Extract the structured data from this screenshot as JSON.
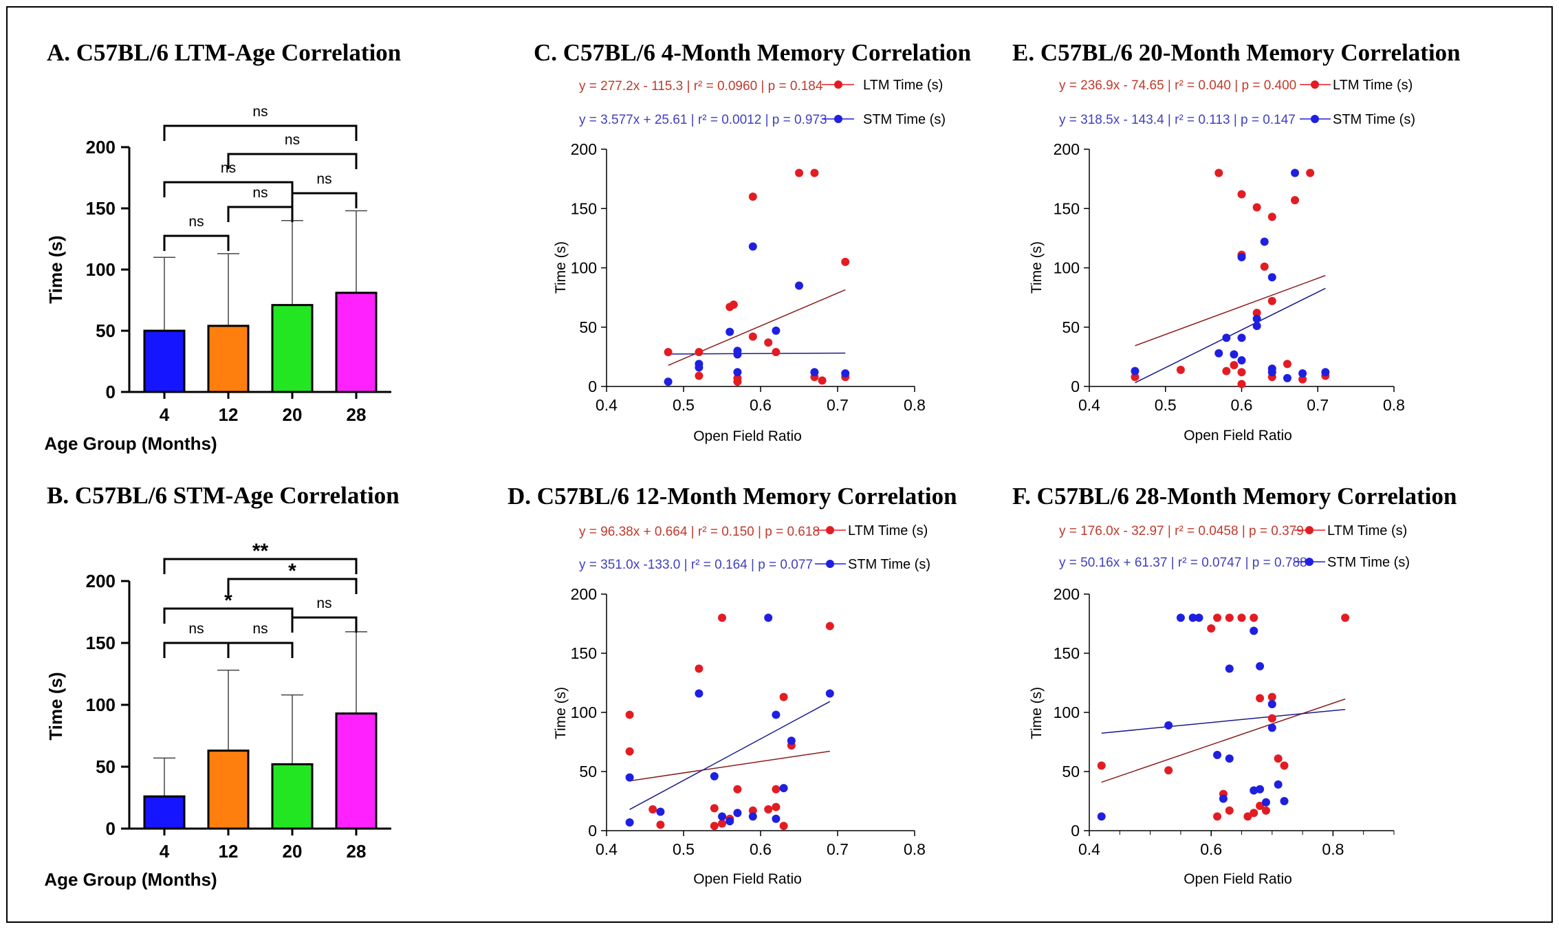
{
  "colors": {
    "ltm": "#e31c23",
    "stm": "#1f1fe0",
    "ltm_fit": "#8b1a1a",
    "stm_fit": "#1a1a8b"
  },
  "chart_data": [
    {
      "type": "bar",
      "title": "A. C57BL/6 LTM-Age Correlation",
      "xlabel": "Age Group (Months)",
      "ylabel": "Time (s)",
      "ylim": [
        0,
        200
      ],
      "yticks": [
        "0",
        "50",
        "100",
        "150",
        "200"
      ],
      "categories": [
        "4",
        "12",
        "20",
        "28"
      ],
      "bar_colors": [
        "#1515ff",
        "#ff7f0e",
        "#22e622",
        "#ff22ff"
      ],
      "values": [
        50,
        54,
        71,
        81
      ],
      "error": [
        60,
        59,
        69,
        67
      ],
      "comparisons": [
        {
          "a": 0,
          "b": 1,
          "label": "ns"
        },
        {
          "a": 1,
          "b": 2,
          "label": "ns"
        },
        {
          "a": 2,
          "b": 3,
          "label": "ns"
        },
        {
          "a": 0,
          "b": 2,
          "label": "ns"
        },
        {
          "a": 1,
          "b": 3,
          "label": "ns"
        },
        {
          "a": 0,
          "b": 3,
          "label": "ns"
        }
      ]
    },
    {
      "type": "bar",
      "title": "B. C57BL/6 STM-Age Correlation",
      "xlabel": "Age Group (Months)",
      "ylabel": "Time (s)",
      "ylim": [
        0,
        200
      ],
      "yticks": [
        "0",
        "50",
        "100",
        "150",
        "200"
      ],
      "categories": [
        "4",
        "12",
        "20",
        "28"
      ],
      "bar_colors": [
        "#1515ff",
        "#ff7f0e",
        "#22e622",
        "#ff22ff"
      ],
      "values": [
        26,
        63,
        52,
        93
      ],
      "error": [
        31,
        65,
        56,
        66
      ],
      "comparisons": [
        {
          "a": 0,
          "b": 1,
          "label": "ns"
        },
        {
          "a": 1,
          "b": 2,
          "label": "ns"
        },
        {
          "a": 2,
          "b": 3,
          "label": "ns"
        },
        {
          "a": 0,
          "b": 2,
          "label": "*"
        },
        {
          "a": 1,
          "b": 3,
          "label": "*"
        },
        {
          "a": 0,
          "b": 3,
          "label": "**"
        }
      ]
    },
    {
      "type": "scatter",
      "title": "C. C57BL/6 4-Month Memory Correlation",
      "xlabel": "Open Field Ratio",
      "ylabel": "Time (s)",
      "xlim": [
        0.4,
        0.8
      ],
      "ylim": [
        0,
        200
      ],
      "xticks": [
        "0.4",
        "0.5",
        "0.6",
        "0.7",
        "0.8"
      ],
      "yticks": [
        "0",
        "50",
        "100",
        "150",
        "200"
      ],
      "series": [
        {
          "name": "LTM Time (s)",
          "equation": "y = 277.2x - 115.3 | r² = 0.0960 | p = 0.184",
          "fit": {
            "slope": 277.2,
            "intercept": -115.3,
            "x0": 0.48,
            "x1": 0.71
          },
          "points": [
            [
              0.48,
              29
            ],
            [
              0.52,
              29
            ],
            [
              0.52,
              9
            ],
            [
              0.56,
              67
            ],
            [
              0.565,
              69
            ],
            [
              0.57,
              7
            ],
            [
              0.57,
              4
            ],
            [
              0.59,
              160
            ],
            [
              0.59,
              42
            ],
            [
              0.61,
              37
            ],
            [
              0.62,
              29
            ],
            [
              0.65,
              180
            ],
            [
              0.67,
              180
            ],
            [
              0.67,
              8
            ],
            [
              0.68,
              5
            ],
            [
              0.71,
              105
            ],
            [
              0.71,
              8
            ]
          ]
        },
        {
          "name": "STM Time (s)",
          "equation": "y = 3.577x + 25.61 | r² = 0.0012 | p = 0.973",
          "fit": {
            "slope": 3.577,
            "intercept": 25.61,
            "x0": 0.48,
            "x1": 0.71
          },
          "points": [
            [
              0.48,
              4
            ],
            [
              0.52,
              19
            ],
            [
              0.52,
              16
            ],
            [
              0.56,
              46
            ],
            [
              0.57,
              30
            ],
            [
              0.57,
              27
            ],
            [
              0.57,
              12
            ],
            [
              0.59,
              118
            ],
            [
              0.62,
              47
            ],
            [
              0.65,
              85
            ],
            [
              0.67,
              12
            ],
            [
              0.71,
              11
            ]
          ]
        }
      ]
    },
    {
      "type": "scatter",
      "title": "D. C57BL/6 12-Month Memory Correlation",
      "xlabel": "Open Field Ratio",
      "ylabel": "Time (s)",
      "xlim": [
        0.4,
        0.8
      ],
      "ylim": [
        0,
        200
      ],
      "xticks": [
        "0.4",
        "0.5",
        "0.6",
        "0.7",
        "0.8"
      ],
      "yticks": [
        "0",
        "50",
        "100",
        "150",
        "200"
      ],
      "series": [
        {
          "name": "LTM Time (s)",
          "equation": "y = 96.38x + 0.664 | r² = 0.150 | p = 0.618",
          "fit": {
            "slope": 96.38,
            "intercept": 0.664,
            "x0": 0.43,
            "x1": 0.69
          },
          "points": [
            [
              0.43,
              98
            ],
            [
              0.43,
              67
            ],
            [
              0.46,
              18
            ],
            [
              0.47,
              5
            ],
            [
              0.52,
              137
            ],
            [
              0.54,
              19
            ],
            [
              0.54,
              4
            ],
            [
              0.55,
              180
            ],
            [
              0.55,
              6
            ],
            [
              0.56,
              10
            ],
            [
              0.57,
              35
            ],
            [
              0.59,
              17
            ],
            [
              0.61,
              18
            ],
            [
              0.62,
              35
            ],
            [
              0.62,
              20
            ],
            [
              0.63,
              113
            ],
            [
              0.63,
              4
            ],
            [
              0.64,
              72
            ],
            [
              0.69,
              173
            ]
          ]
        },
        {
          "name": "STM Time (s)",
          "equation": "y = 351.0x -133.0 | r² = 0.164 | p = 0.077",
          "fit": {
            "slope": 351.0,
            "intercept": -133.0,
            "x0": 0.43,
            "x1": 0.69
          },
          "points": [
            [
              0.43,
              45
            ],
            [
              0.43,
              7
            ],
            [
              0.47,
              16
            ],
            [
              0.52,
              116
            ],
            [
              0.54,
              46
            ],
            [
              0.55,
              12
            ],
            [
              0.56,
              8
            ],
            [
              0.57,
              15
            ],
            [
              0.59,
              12
            ],
            [
              0.61,
              180
            ],
            [
              0.62,
              98
            ],
            [
              0.62,
              10
            ],
            [
              0.63,
              36
            ],
            [
              0.64,
              76
            ],
            [
              0.69,
              116
            ]
          ]
        }
      ]
    },
    {
      "type": "scatter",
      "title": "E. C57BL/6 20-Month Memory Correlation",
      "xlabel": "Open Field Ratio",
      "ylabel": "Time (s)",
      "xlim": [
        0.4,
        0.8
      ],
      "ylim": [
        0,
        200
      ],
      "xticks": [
        "0.4",
        "0.5",
        "0.6",
        "0.7",
        "0.8"
      ],
      "yticks": [
        "0",
        "50",
        "100",
        "150",
        "200"
      ],
      "series": [
        {
          "name": "LTM Time (s)",
          "equation": "y = 236.9x - 74.65 | r² = 0.040 | p = 0.400",
          "fit": {
            "slope": 236.9,
            "intercept": -74.65,
            "x0": 0.46,
            "x1": 0.71
          },
          "points": [
            [
              0.46,
              8
            ],
            [
              0.52,
              14
            ],
            [
              0.57,
              180
            ],
            [
              0.58,
              13
            ],
            [
              0.59,
              18
            ],
            [
              0.6,
              162
            ],
            [
              0.6,
              111
            ],
            [
              0.6,
              12
            ],
            [
              0.6,
              2
            ],
            [
              0.62,
              151
            ],
            [
              0.62,
              62
            ],
            [
              0.63,
              101
            ],
            [
              0.64,
              143
            ],
            [
              0.64,
              72
            ],
            [
              0.64,
              8
            ],
            [
              0.66,
              19
            ],
            [
              0.67,
              157
            ],
            [
              0.68,
              6
            ],
            [
              0.69,
              180
            ],
            [
              0.71,
              9
            ]
          ]
        },
        {
          "name": "STM Time (s)",
          "equation": "y = 318.5x - 143.4 | r² = 0.113 | p = 0.147",
          "fit": {
            "slope": 318.5,
            "intercept": -143.4,
            "x0": 0.46,
            "x1": 0.71
          },
          "points": [
            [
              0.46,
              13
            ],
            [
              0.57,
              28
            ],
            [
              0.58,
              41
            ],
            [
              0.59,
              27
            ],
            [
              0.6,
              109
            ],
            [
              0.6,
              41
            ],
            [
              0.6,
              22
            ],
            [
              0.62,
              51
            ],
            [
              0.62,
              57
            ],
            [
              0.63,
              122
            ],
            [
              0.64,
              92
            ],
            [
              0.64,
              15
            ],
            [
              0.64,
              12
            ],
            [
              0.66,
              7
            ],
            [
              0.67,
              180
            ],
            [
              0.68,
              11
            ],
            [
              0.71,
              12
            ]
          ]
        }
      ]
    },
    {
      "type": "scatter",
      "title": "F. C57BL/6 28-Month Memory Correlation",
      "xlabel": "Open Field Ratio",
      "ylabel": "Time (s)",
      "xlim": [
        0.4,
        0.9
      ],
      "ylim": [
        0,
        200
      ],
      "xticks": [
        "0.4",
        "0.6",
        "0.8"
      ],
      "yticks": [
        "0",
        "50",
        "100",
        "150",
        "200"
      ],
      "series": [
        {
          "name": "LTM Time (s)",
          "equation": "y = 176.0x - 32.97 | r² = 0.0458 | p = 0.379",
          "fit": {
            "slope": 176.0,
            "intercept": -32.97,
            "x0": 0.42,
            "x1": 0.82
          },
          "points": [
            [
              0.42,
              55
            ],
            [
              0.53,
              51
            ],
            [
              0.6,
              171
            ],
            [
              0.61,
              180
            ],
            [
              0.61,
              12
            ],
            [
              0.62,
              31
            ],
            [
              0.63,
              180
            ],
            [
              0.63,
              17
            ],
            [
              0.65,
              180
            ],
            [
              0.66,
              12
            ],
            [
              0.67,
              180
            ],
            [
              0.67,
              15
            ],
            [
              0.68,
              112
            ],
            [
              0.68,
              21
            ],
            [
              0.69,
              17
            ],
            [
              0.7,
              113
            ],
            [
              0.7,
              95
            ],
            [
              0.71,
              61
            ],
            [
              0.72,
              55
            ],
            [
              0.82,
              180
            ]
          ]
        },
        {
          "name": "STM Time (s)",
          "equation": "y = 50.16x + 61.37 | r² = 0.0747 | p = 0.788",
          "fit": {
            "slope": 50.16,
            "intercept": 61.37,
            "x0": 0.42,
            "x1": 0.82
          },
          "points": [
            [
              0.42,
              12
            ],
            [
              0.53,
              89
            ],
            [
              0.55,
              180
            ],
            [
              0.57,
              180
            ],
            [
              0.58,
              180
            ],
            [
              0.61,
              64
            ],
            [
              0.62,
              27
            ],
            [
              0.63,
              137
            ],
            [
              0.63,
              61
            ],
            [
              0.67,
              169
            ],
            [
              0.67,
              34
            ],
            [
              0.68,
              139
            ],
            [
              0.68,
              35
            ],
            [
              0.69,
              24
            ],
            [
              0.7,
              107
            ],
            [
              0.7,
              87
            ],
            [
              0.71,
              39
            ],
            [
              0.72,
              25
            ]
          ]
        }
      ]
    }
  ]
}
